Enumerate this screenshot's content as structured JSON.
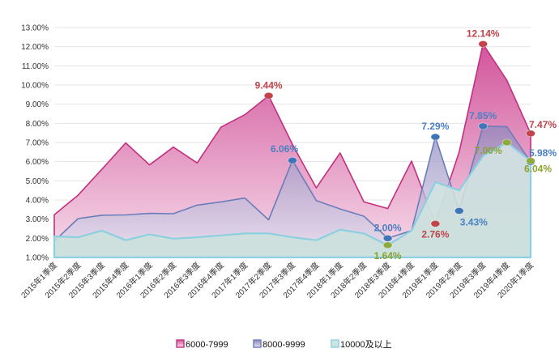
{
  "chart_data": {
    "type": "area",
    "title": "",
    "xlabel": "",
    "ylabel": "",
    "ylim": [
      1,
      13
    ],
    "y_ticks": [
      "1.00%",
      "2.00%",
      "3.00%",
      "4.00%",
      "5.00%",
      "6.00%",
      "7.00%",
      "8.00%",
      "9.00%",
      "10.00%",
      "11.00%",
      "12.00%",
      "13.00%"
    ],
    "grid": true,
    "legend_position": "bottom",
    "categories": [
      "2015年1季度",
      "2015年2季度",
      "2015年3季度",
      "2015年4季度",
      "2016年1季度",
      "2016年2季度",
      "2016年3季度",
      "2016年4季度",
      "2017年1季度",
      "2017年2季度",
      "2017年3季度",
      "2017年4季度",
      "2018年1季度",
      "2018年2季度",
      "2018年3季度",
      "2018年4季度",
      "2019年1季度",
      "2019年2季度",
      "2019年3季度",
      "2019年4季度",
      "2020年1季度"
    ],
    "series": [
      {
        "name": "6000-7999",
        "color": "#c2307f",
        "fill_top": "#d2559c",
        "fill_bottom": "#f6dcea",
        "marker_color": "#c0444a",
        "label_color": "#c0444a",
        "values": [
          3.23,
          4.25,
          5.6,
          6.98,
          5.83,
          6.76,
          5.93,
          7.8,
          8.45,
          9.44,
          6.9,
          4.63,
          6.45,
          3.9,
          3.55,
          6.03,
          2.76,
          6.5,
          12.14,
          10.25,
          7.47
        ]
      },
      {
        "name": "8000-9999",
        "color": "#6b7db8",
        "fill_top": "#8f88bd",
        "fill_bottom": "#e6e2f0",
        "marker_color": "#3f74b8",
        "label_color": "#4a80c2",
        "values": [
          1.85,
          3.03,
          3.2,
          3.22,
          3.3,
          3.28,
          3.73,
          3.9,
          4.1,
          2.96,
          6.06,
          3.97,
          3.53,
          3.15,
          2.0,
          2.4,
          7.29,
          3.43,
          7.85,
          7.83,
          5.98
        ]
      },
      {
        "name": "10000及以上",
        "color": "#8ccfe0",
        "fill_top": "#d6e8e6",
        "fill_bottom": "#c8e1da",
        "marker_color": "#8eaa3c",
        "label_color": "#8aa232",
        "values": [
          2.1,
          2.05,
          2.4,
          1.9,
          2.2,
          1.98,
          2.05,
          2.15,
          2.25,
          2.25,
          2.05,
          1.9,
          2.45,
          2.25,
          1.64,
          2.4,
          4.93,
          4.5,
          6.3,
          7.0,
          6.04
        ]
      }
    ],
    "annotations": [
      {
        "series": 0,
        "index": 9,
        "text": "9.44%",
        "place": "above"
      },
      {
        "series": 0,
        "index": 16,
        "text": "2.76%",
        "place": "below"
      },
      {
        "series": 0,
        "index": 18,
        "text": "12.14%",
        "place": "above"
      },
      {
        "series": 0,
        "index": 20,
        "text": "7.47%",
        "place": "right-above"
      },
      {
        "series": 1,
        "index": 10,
        "text": "6.06%",
        "place": "above-left"
      },
      {
        "series": 1,
        "index": 14,
        "text": "2.00%",
        "place": "above"
      },
      {
        "series": 1,
        "index": 16,
        "text": "7.29%",
        "place": "above"
      },
      {
        "series": 1,
        "index": 17,
        "text": "3.43%",
        "place": "below-right"
      },
      {
        "series": 1,
        "index": 18,
        "text": "7.85%",
        "place": "above"
      },
      {
        "series": 1,
        "index": 20,
        "text": "5.98%",
        "place": "right-above"
      },
      {
        "series": 2,
        "index": 14,
        "text": "1.64%",
        "place": "below"
      },
      {
        "series": 2,
        "index": 19,
        "text": "7.00%",
        "place": "below-left"
      },
      {
        "series": 2,
        "index": 20,
        "text": "6.04%",
        "place": "right-below"
      }
    ]
  }
}
